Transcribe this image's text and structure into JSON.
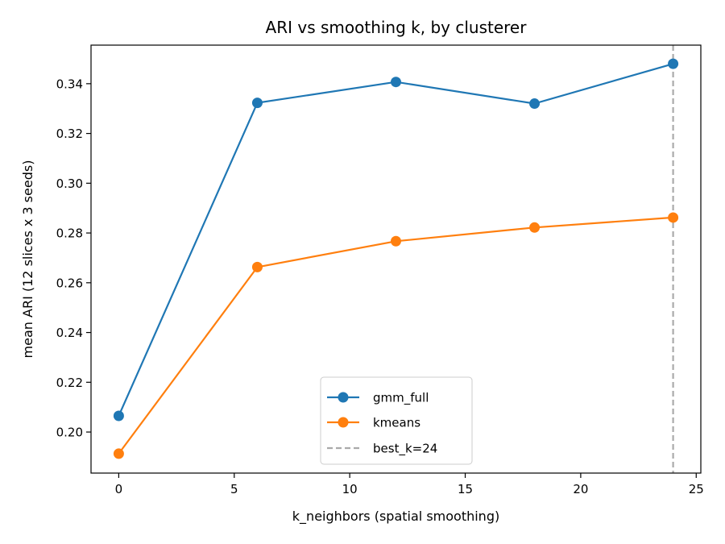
{
  "chart_data": {
    "type": "line",
    "title": "ARI vs smoothing k, by clusterer",
    "xlabel": "k_neighbors (spatial smoothing)",
    "ylabel": "mean ARI (12 slices x 3 seeds)",
    "xlim": [
      -1.2,
      25.2
    ],
    "ylim": [
      0.1835,
      0.3555
    ],
    "xticks": [
      0,
      5,
      10,
      15,
      20,
      25
    ],
    "yticks": [
      0.2,
      0.22,
      0.24,
      0.26,
      0.28,
      0.3,
      0.32,
      0.34
    ],
    "x": [
      0,
      6,
      12,
      18,
      24
    ],
    "series": [
      {
        "name": "gmm_full",
        "color": "#1f77b4",
        "marker": "circle",
        "values": [
          0.2065,
          0.3323,
          0.3407,
          0.332,
          0.348
        ]
      },
      {
        "name": "kmeans",
        "color": "#ff7f0e",
        "marker": "circle",
        "values": [
          0.1913,
          0.2663,
          0.2767,
          0.2822,
          0.2862
        ]
      }
    ],
    "reference_line": {
      "label": "best_k=24",
      "x": 24,
      "color": "#aaaaaa",
      "style": "dashed"
    },
    "legend_position": "lower center",
    "grid": false
  }
}
